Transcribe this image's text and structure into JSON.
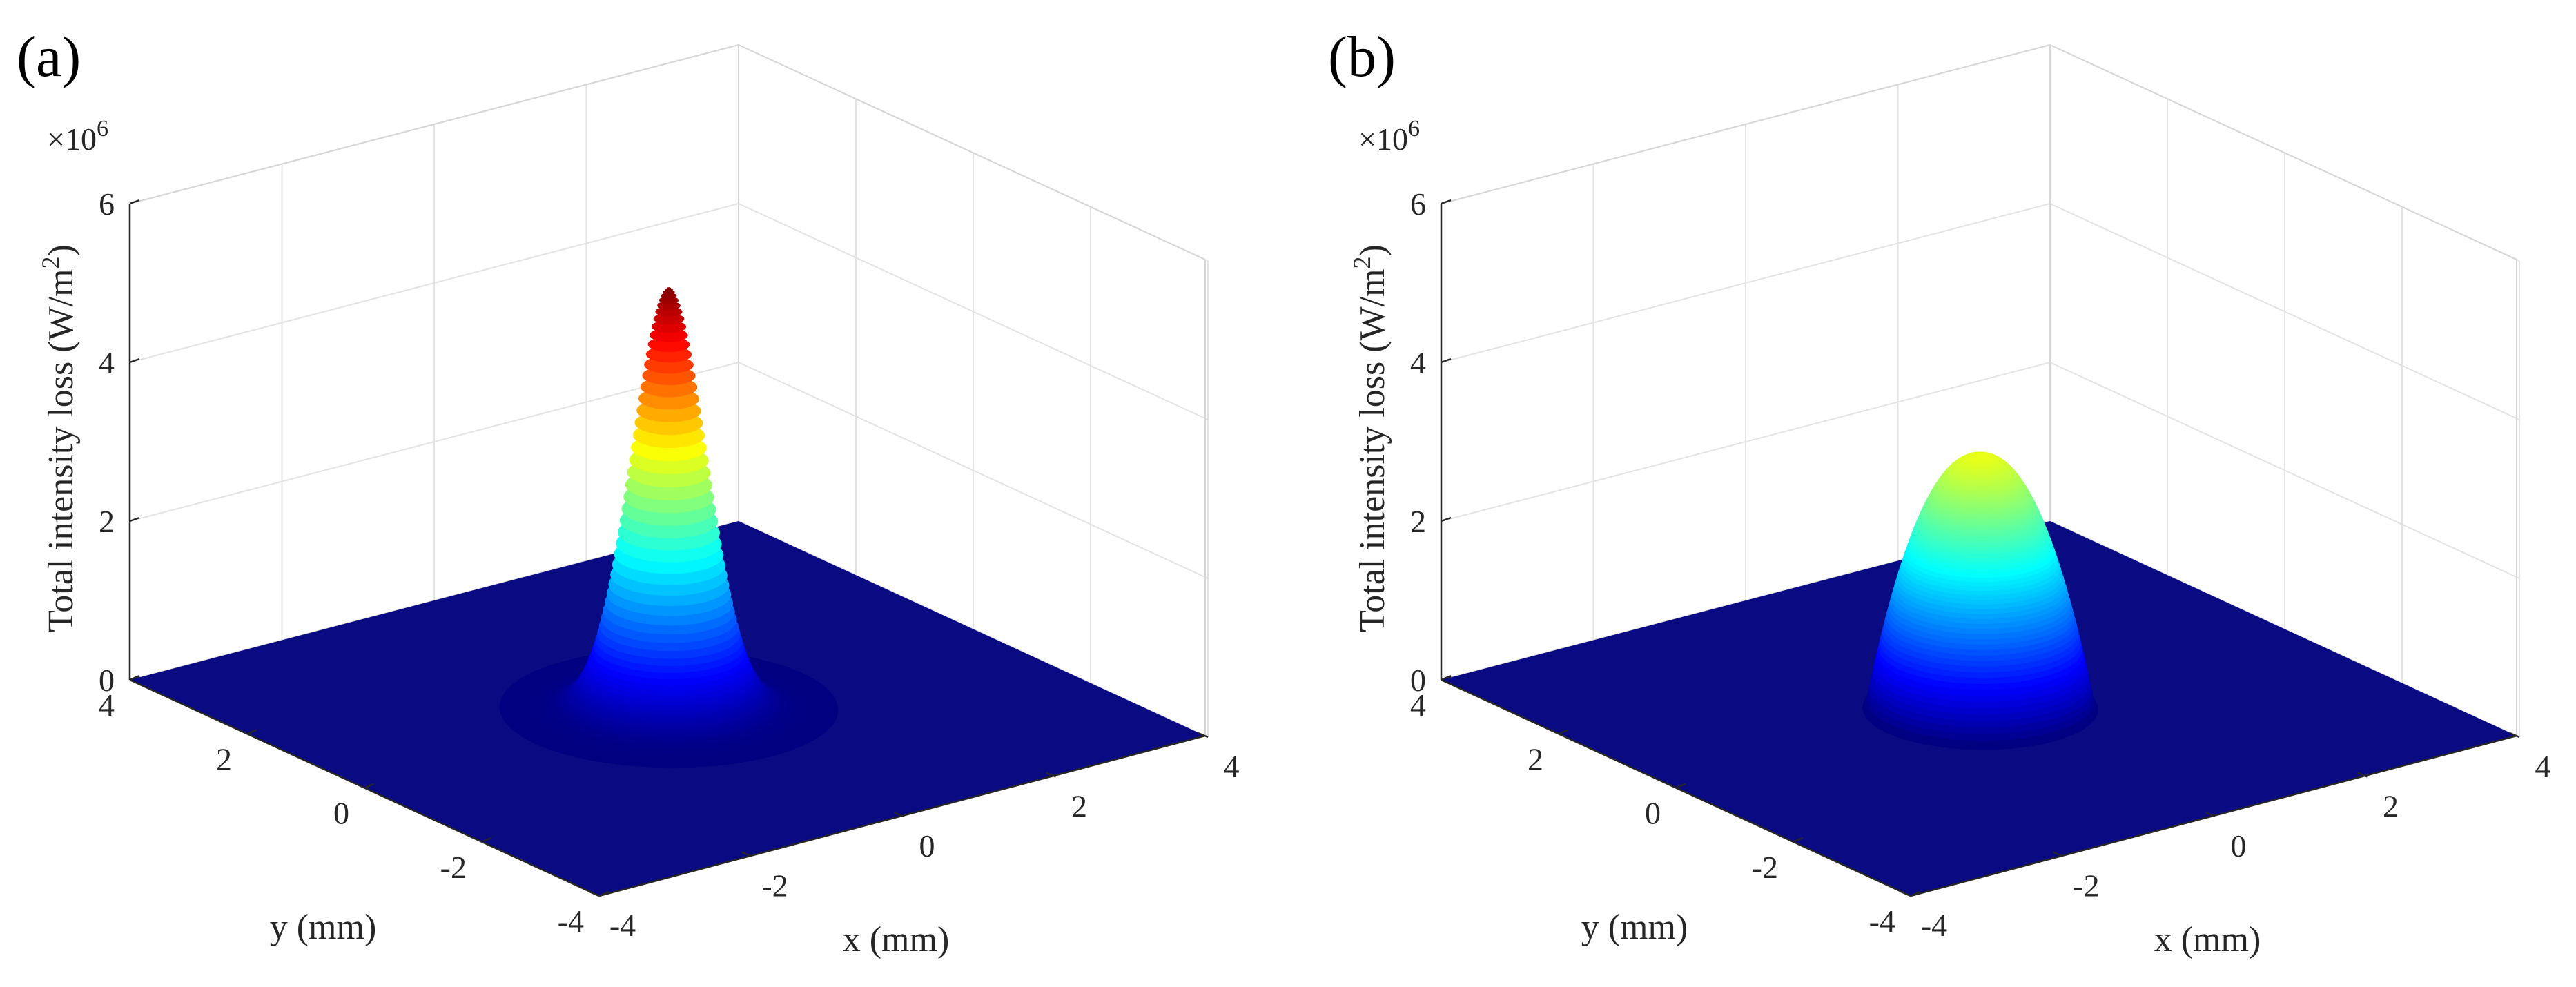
{
  "figure": {
    "description_labels": [
      "(a)",
      "(b)"
    ]
  },
  "chart_data": [
    {
      "type": "surface3d",
      "panel_label": "(a)",
      "profile": "gaussian",
      "peak": 5.3,
      "peak_units": "x10^6 W/m^2",
      "radius_mm": 0.8,
      "center_mm": [
        0,
        0
      ],
      "xlabel": "x (mm)",
      "ylabel": "y (mm)",
      "zlabel": "Total intensity loss (W/m",
      "zlabel_sup": "2",
      "zlabel_end": ")",
      "z_exponent_prefix": "×10",
      "z_exponent": "6",
      "xlim": [
        -4,
        4
      ],
      "ylim": [
        -4,
        4
      ],
      "zlim": [
        0,
        6
      ],
      "xticks": [
        "-4",
        "-2",
        "0",
        "2",
        "4"
      ],
      "yticks": [
        "-4",
        "-2",
        "0",
        "2",
        "4"
      ],
      "zticks": [
        "0",
        "2",
        "4",
        "6"
      ],
      "colormap": "jet",
      "grid": true
    },
    {
      "type": "surface3d",
      "panel_label": "(b)",
      "profile": "flattened_gaussian",
      "peak": 3.2,
      "peak_units": "x10^6 W/m^2",
      "radius_mm": 1.2,
      "center_mm": [
        0,
        0
      ],
      "xlabel": "x (mm)",
      "ylabel": "y (mm)",
      "zlabel": "Total intensity loss (W/m",
      "zlabel_sup": "2",
      "zlabel_end": ")",
      "z_exponent_prefix": "×10",
      "z_exponent": "6",
      "xlim": [
        -4,
        4
      ],
      "ylim": [
        -4,
        4
      ],
      "zlim": [
        0,
        6
      ],
      "xticks": [
        "-4",
        "-2",
        "0",
        "2",
        "4"
      ],
      "yticks": [
        "-4",
        "-2",
        "0",
        "2",
        "4"
      ],
      "zticks": [
        "0",
        "2",
        "4",
        "6"
      ],
      "colormap": "jet",
      "grid": true
    }
  ]
}
